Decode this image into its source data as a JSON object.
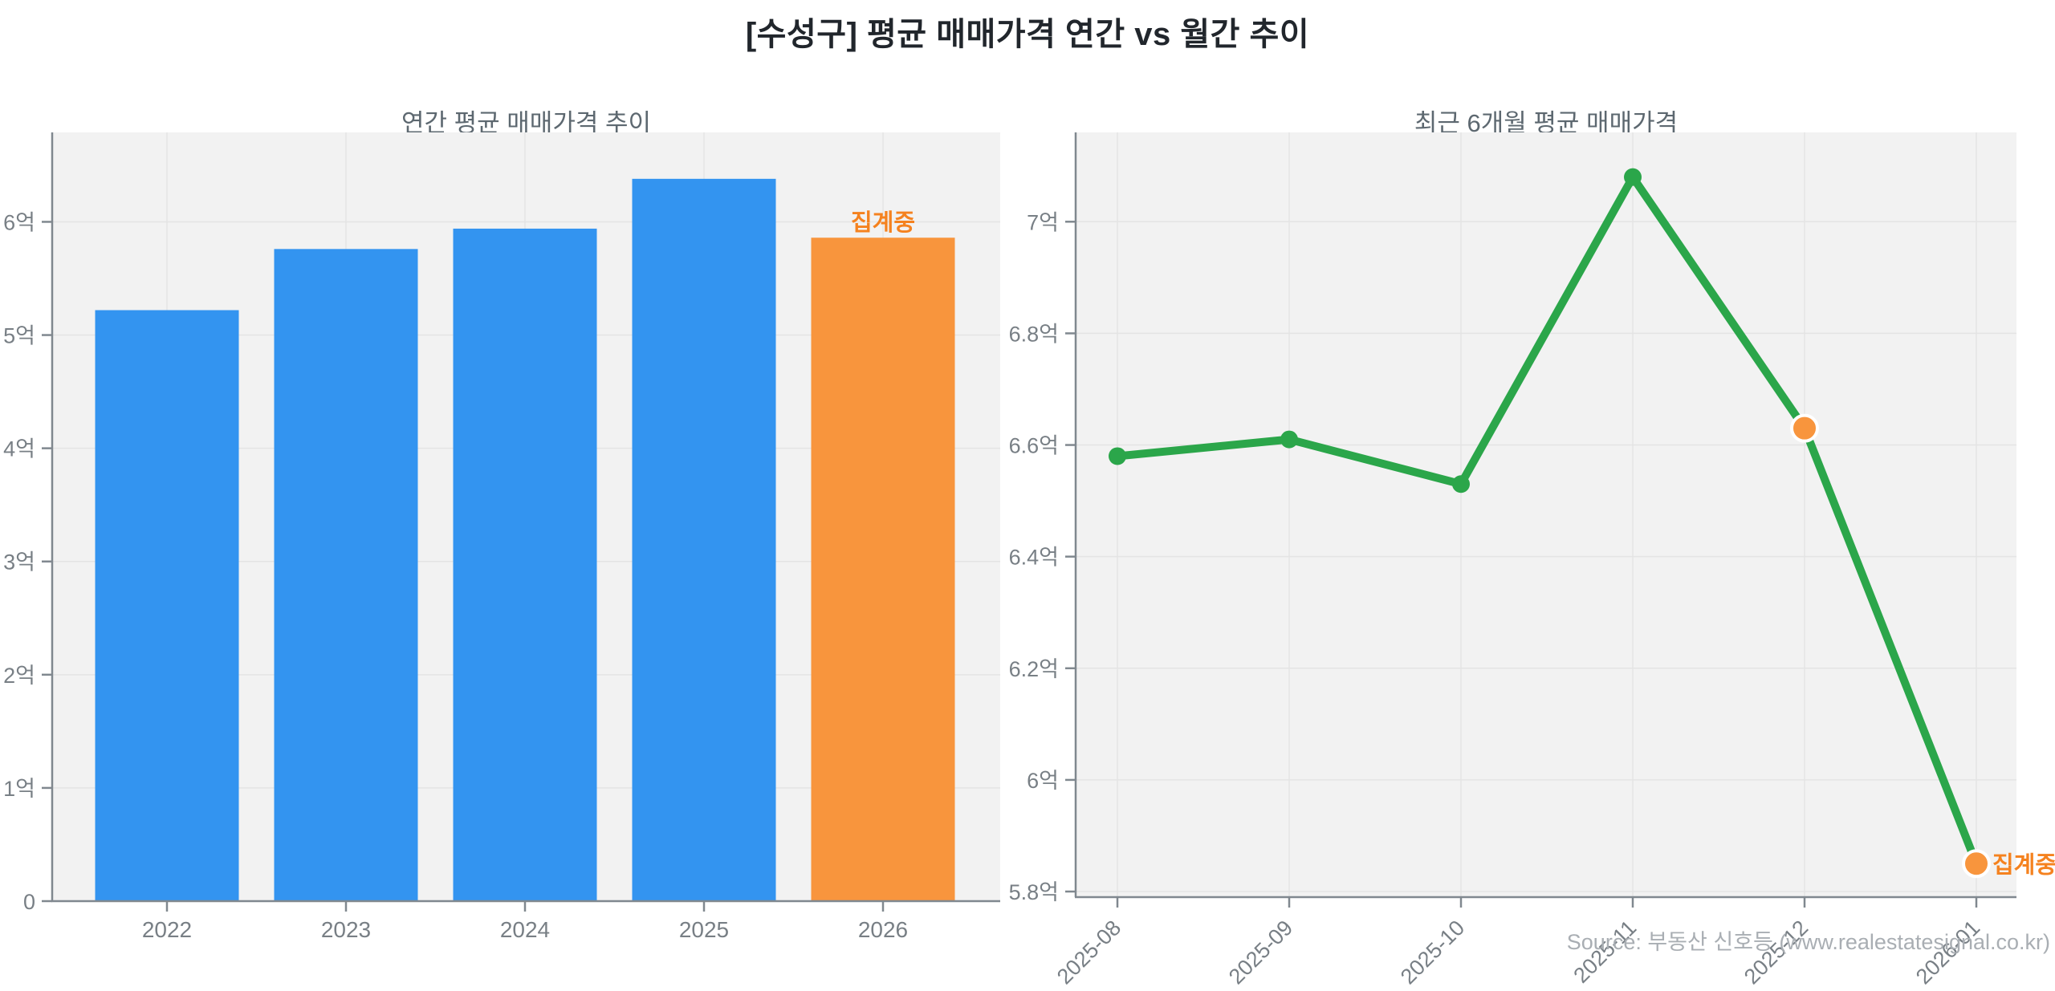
{
  "page": {
    "title": "[수성구] 평균 매매가격 연간 vs 월간 추이",
    "source": "Source: 부동산 신호등 (www.realestatesignal.co.kr)"
  },
  "colors": {
    "bar_blue": "#3394f0",
    "highlight_orange": "#f8953d",
    "annotation_orange": "#f5821f",
    "line_green": "#2ba64a",
    "plot_bg": "#f2f2f2",
    "grid": "#e4e4e4",
    "spine": "#80888f",
    "tick_label": "#787f85",
    "marker_edge_white": "#ffffff"
  },
  "chart_data": [
    {
      "type": "bar",
      "title": "연간 평균 매매가격 추이",
      "categories": [
        "2022",
        "2023",
        "2024",
        "2025",
        "2026"
      ],
      "values": [
        5.22,
        5.76,
        5.94,
        6.38,
        5.86
      ],
      "unit": "억",
      "ytick_values": [
        0,
        1,
        2,
        3,
        4,
        5,
        6
      ],
      "ytick_labels": [
        "0",
        "1억",
        "2억",
        "3억",
        "4억",
        "5억",
        "6억"
      ],
      "ylim": [
        0,
        6.79
      ],
      "grid": true,
      "highlight_index": 4,
      "annotation": {
        "text": "집계중",
        "index": 4
      }
    },
    {
      "type": "line",
      "title": "최근 6개월 평균 매매가격",
      "categories": [
        "2025-08",
        "2025-09",
        "2025-10",
        "2025-11",
        "2025-12",
        "2026-01"
      ],
      "values": [
        6.58,
        6.61,
        6.53,
        7.08,
        6.63,
        5.85
      ],
      "unit": "억",
      "ytick_values": [
        5.8,
        6.0,
        6.2,
        6.4,
        6.6,
        6.8,
        7.0
      ],
      "ytick_labels": [
        "5.8억",
        "6억",
        "6.2억",
        "6.4억",
        "6.6억",
        "6.8억",
        "7억"
      ],
      "ylim": [
        5.79,
        7.16
      ],
      "grid": true,
      "highlight_indices": [
        4,
        5
      ],
      "annotation": {
        "text": "집계중",
        "index": 5
      }
    }
  ]
}
